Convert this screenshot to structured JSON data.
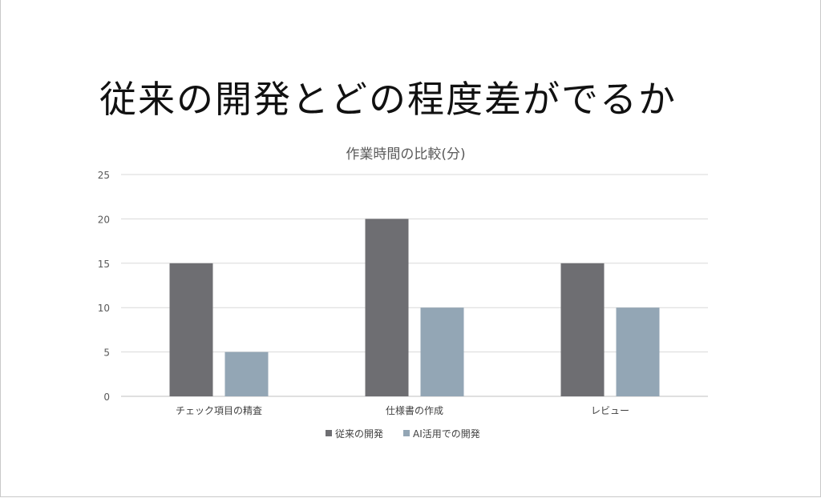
{
  "slide": {
    "title": "従来の開発とどの程度差がでるか"
  },
  "chart_data": {
    "type": "bar",
    "title": "作業時間の比較(分)",
    "categories": [
      "チェック項目の精査",
      "仕様書の作成",
      "レビュー"
    ],
    "series": [
      {
        "name": "従来の開発",
        "values": [
          15,
          20,
          15
        ],
        "color": "#6e6e72"
      },
      {
        "name": "AI活用での開発",
        "values": [
          5,
          10,
          10
        ],
        "color": "#93a6b5"
      }
    ],
    "ylim": [
      0,
      25
    ],
    "yticks": [
      0,
      5,
      10,
      15,
      20,
      25
    ],
    "grid": true,
    "legend": "bottom",
    "xlabel": "",
    "ylabel": ""
  }
}
